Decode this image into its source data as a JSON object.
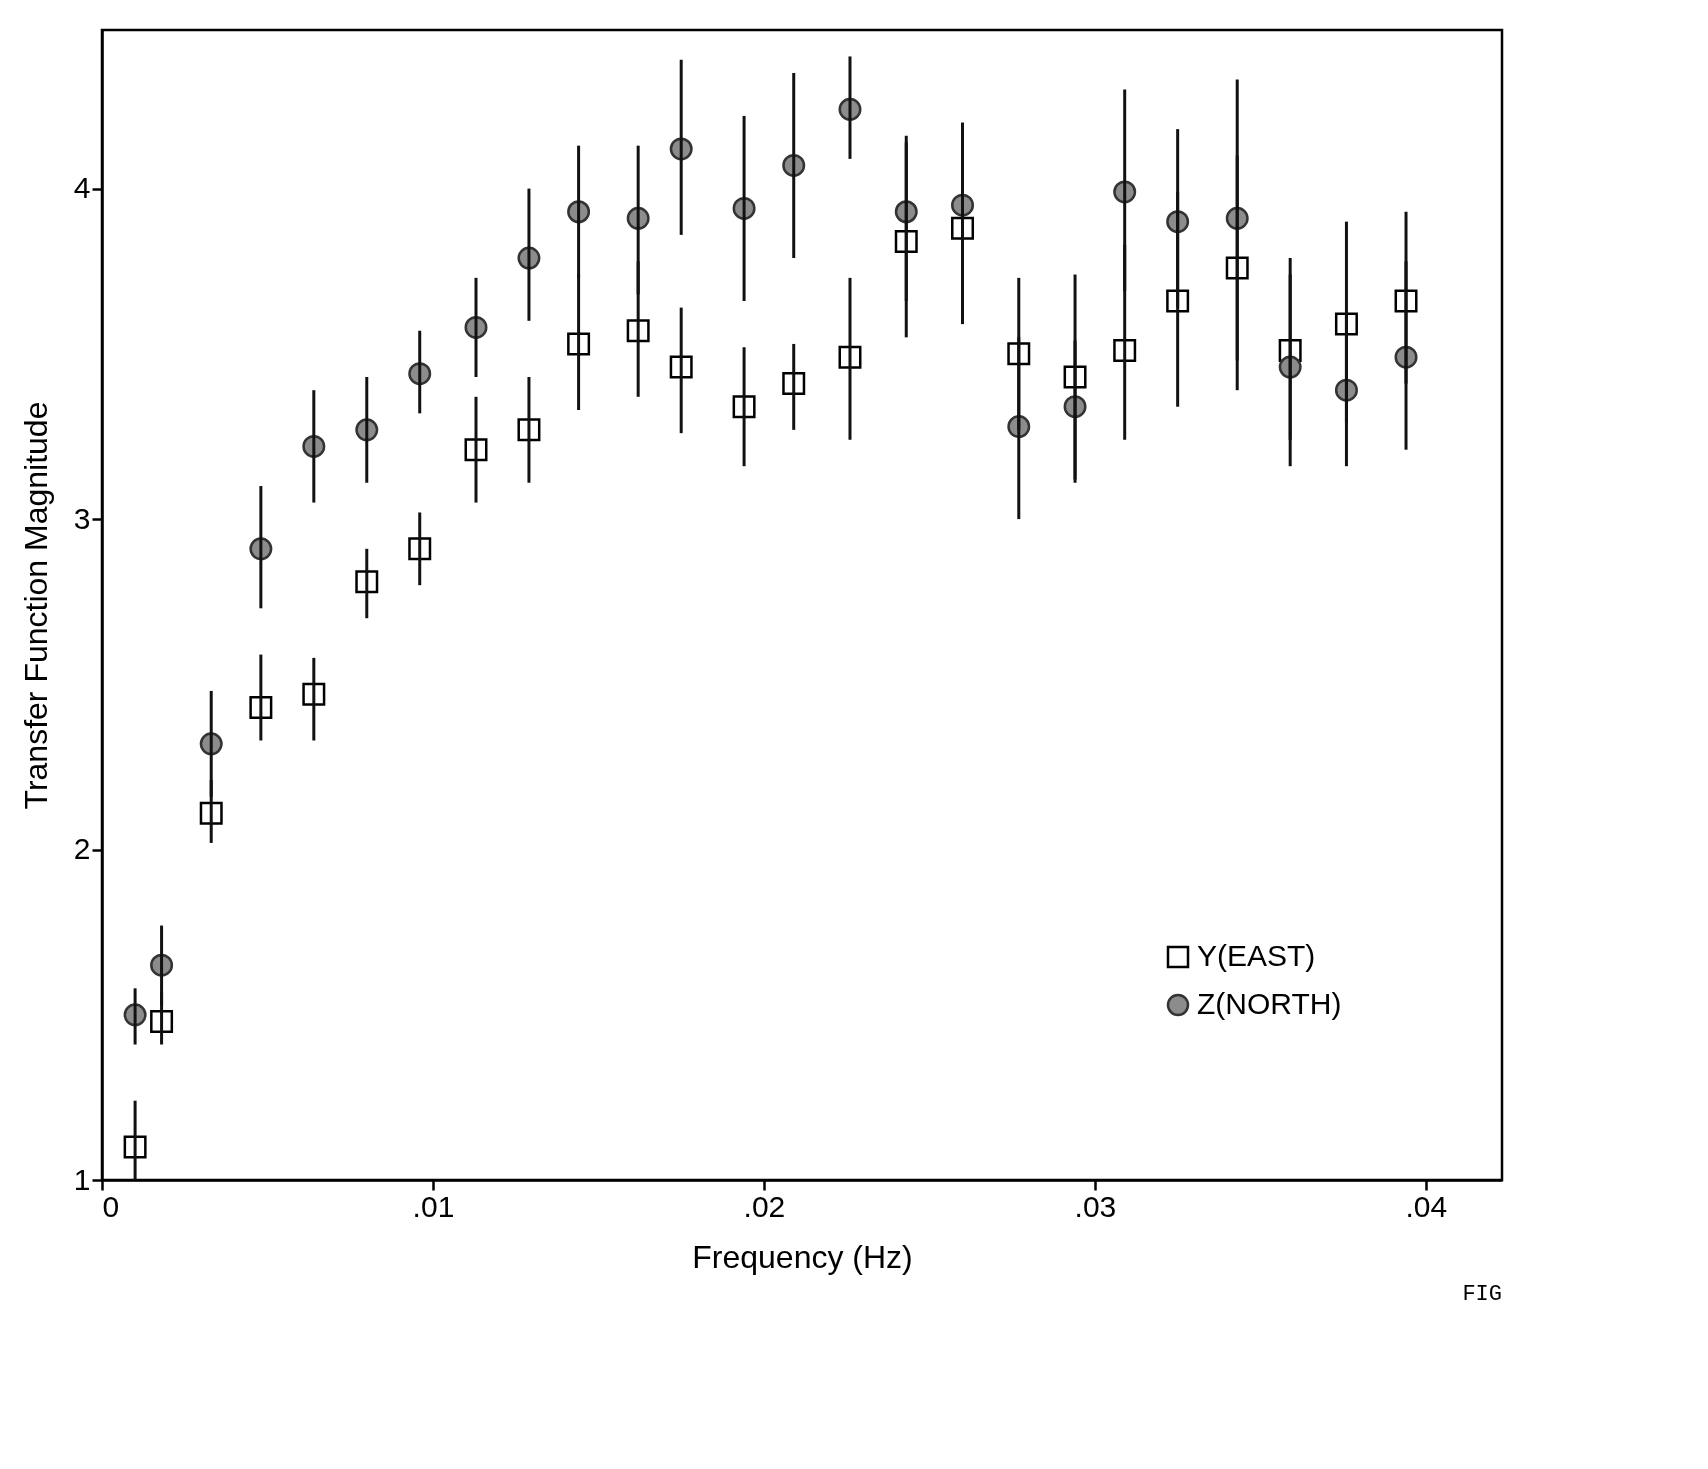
{
  "chart_data": {
    "type": "scatter",
    "xlabel": "Frequency (Hz)",
    "ylabel": "Transfer Function Magnitude",
    "annotations": [
      "FIG"
    ],
    "x": [
      0.001,
      0.0018,
      0.0033,
      0.0048,
      0.0064,
      0.008,
      0.0096,
      0.0113,
      0.0129,
      0.0144,
      0.0162,
      0.0175,
      0.0194,
      0.0209,
      0.0226,
      0.0243,
      0.026,
      0.0277,
      0.0294,
      0.0309,
      0.0325,
      0.0343,
      0.0359,
      0.0376,
      0.0394
    ],
    "xlim": [
      0,
      0.0423
    ],
    "ylim": [
      1,
      4.48
    ],
    "xticks": [
      0,
      {
        "value": 0.01,
        "label": ".01"
      },
      {
        "value": 0.02,
        "label": ".02"
      },
      {
        "value": 0.03,
        "label": ".03"
      },
      {
        "value": 0.04,
        "label": ".04"
      }
    ],
    "yticks": [
      1,
      2,
      3,
      4
    ],
    "legend": "bottom right",
    "series": [
      {
        "name": "Y(EAST)",
        "color": "#000000",
        "marker": "square",
        "values": [
          1.1,
          1.48,
          2.11,
          2.43,
          2.47,
          2.81,
          2.91,
          3.21,
          3.27,
          3.53,
          3.57,
          3.46,
          3.34,
          3.41,
          3.49,
          3.84,
          3.88,
          3.5,
          3.43,
          3.51,
          3.66,
          3.76,
          3.51,
          3.59,
          3.66
        ],
        "errors": [
          [
            1.0,
            1.24
          ],
          [
            1.41,
            1.57
          ],
          [
            2.02,
            2.21
          ],
          [
            2.33,
            2.59
          ],
          [
            2.33,
            2.58
          ],
          [
            2.7,
            2.91
          ],
          [
            2.8,
            3.02
          ],
          [
            3.05,
            3.37
          ],
          [
            3.11,
            3.43
          ],
          [
            3.33,
            3.74
          ],
          [
            3.37,
            3.78
          ],
          [
            3.26,
            3.64
          ],
          [
            3.16,
            3.52
          ],
          [
            3.27,
            3.53
          ],
          [
            3.24,
            3.73
          ],
          [
            3.55,
            4.14
          ],
          [
            3.59,
            4.2
          ],
          [
            3.27,
            3.73
          ],
          [
            3.12,
            3.74
          ],
          [
            3.24,
            3.83
          ],
          [
            3.34,
            3.99
          ],
          [
            3.39,
            4.1
          ],
          [
            3.24,
            3.79
          ],
          [
            3.29,
            3.9
          ],
          [
            3.41,
            3.93
          ]
        ]
      },
      {
        "name": "Z(NORTH)",
        "color": "#8c8c8c",
        "marker": "circle",
        "values": [
          1.5,
          1.65,
          2.32,
          2.91,
          3.22,
          3.27,
          3.44,
          3.58,
          3.79,
          3.93,
          3.91,
          4.12,
          3.94,
          4.07,
          4.24,
          3.93,
          3.95,
          3.28,
          3.34,
          3.99,
          3.9,
          3.91,
          3.46,
          3.39,
          3.49
        ],
        "errors": [
          [
            1.41,
            1.58
          ],
          [
            1.53,
            1.77
          ],
          [
            2.16,
            2.48
          ],
          [
            2.73,
            3.1
          ],
          [
            3.05,
            3.39
          ],
          [
            3.11,
            3.43
          ],
          [
            3.32,
            3.57
          ],
          [
            3.43,
            3.73
          ],
          [
            3.6,
            4.0
          ],
          [
            3.73,
            4.13
          ],
          [
            3.68,
            4.13
          ],
          [
            3.86,
            4.39
          ],
          [
            3.66,
            4.22
          ],
          [
            3.79,
            4.35
          ],
          [
            4.09,
            4.4
          ],
          [
            3.66,
            4.16
          ],
          [
            3.68,
            4.17
          ],
          [
            3.0,
            3.55
          ],
          [
            3.11,
            3.54
          ],
          [
            3.69,
            4.3
          ],
          [
            3.64,
            4.18
          ],
          [
            3.48,
            4.33
          ],
          [
            3.16,
            3.74
          ],
          [
            3.16,
            3.62
          ],
          [
            3.21,
            3.78
          ]
        ]
      }
    ]
  }
}
